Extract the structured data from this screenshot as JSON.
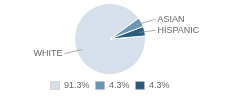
{
  "chart_data": {
    "type": "pie",
    "categories": [
      "WHITE",
      "ASIAN",
      "HISPANIC"
    ],
    "values": [
      91.3,
      4.3,
      4.3
    ],
    "value_labels": [
      "91.3%",
      "4.3%",
      "4.3%"
    ],
    "colors": [
      "#d6e0ea",
      "#6b96b4",
      "#2b5c7e"
    ],
    "legend": "bottom"
  }
}
